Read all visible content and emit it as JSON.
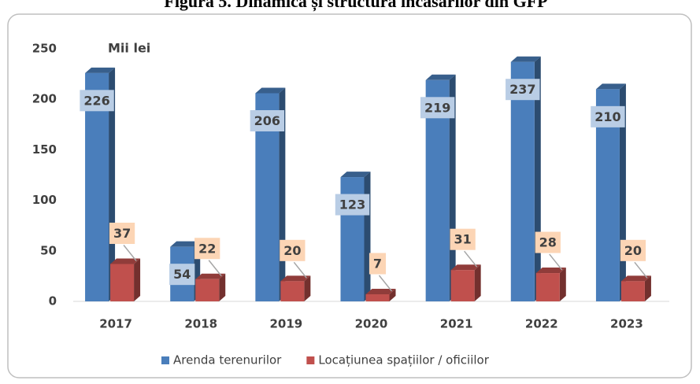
{
  "chart_data": {
    "type": "bar3d",
    "title": "Figura 5. Dinamica și structura încasărilor din GFP",
    "y_label": "Mii lei",
    "categories": [
      "2017",
      "2018",
      "2019",
      "2020",
      "2021",
      "2022",
      "2023"
    ],
    "series": [
      {
        "name": "Arenda terenurilor",
        "color": "#4a7ebb",
        "values": [
          226,
          54,
          206,
          123,
          219,
          237,
          210
        ]
      },
      {
        "name": "Locațiunea spațiilor / oficiilor",
        "color": "#c0504d",
        "values": [
          37,
          22,
          20,
          7,
          31,
          28,
          20
        ]
      }
    ],
    "ylim": [
      0,
      250
    ],
    "yticks": [
      0,
      50,
      100,
      150,
      200,
      250
    ],
    "grid": false,
    "legend": "bottom"
  }
}
